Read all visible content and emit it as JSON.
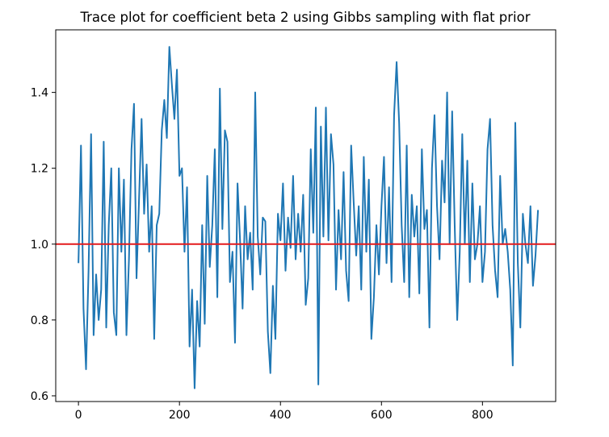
{
  "chart_data": {
    "type": "line",
    "title": "Trace plot for coefficient beta 2 using Gibbs sampling with flat prior",
    "xlabel": "",
    "ylabel": "",
    "xlim": [
      -45,
      945
    ],
    "ylim": [
      0.585,
      1.565
    ],
    "x_ticks": [
      0,
      200,
      400,
      600,
      800
    ],
    "x_tick_labels": [
      "0",
      "200",
      "400",
      "600",
      "800"
    ],
    "y_ticks": [
      0.6,
      0.8,
      1.0,
      1.2,
      1.4
    ],
    "y_tick_labels": [
      "0.6",
      "0.8",
      "1.0",
      "1.2",
      "1.4"
    ],
    "grid": false,
    "legend": "none",
    "reference_line": {
      "y": 1.0,
      "color": "#e41a1c"
    },
    "series": [
      {
        "color": "#1f77b4",
        "x_start": 0,
        "x_step": 5,
        "values": [
          0.95,
          1.26,
          0.83,
          0.67,
          0.93,
          1.29,
          0.76,
          0.92,
          0.8,
          0.88,
          1.27,
          0.78,
          1.05,
          1.2,
          0.82,
          0.76,
          1.2,
          0.98,
          1.17,
          0.76,
          0.96,
          1.25,
          1.37,
          0.91,
          1.12,
          1.33,
          1.08,
          1.21,
          0.98,
          1.1,
          0.75,
          1.05,
          1.08,
          1.3,
          1.38,
          1.28,
          1.52,
          1.42,
          1.33,
          1.46,
          1.18,
          1.2,
          0.98,
          1.15,
          0.73,
          0.88,
          0.62,
          0.85,
          0.73,
          1.05,
          0.79,
          1.18,
          0.94,
          1.05,
          1.25,
          0.86,
          1.41,
          1.04,
          1.3,
          1.27,
          0.9,
          0.98,
          0.74,
          1.16,
          1.01,
          0.83,
          1.1,
          0.96,
          1.03,
          0.88,
          1.4,
          1.02,
          0.92,
          1.07,
          1.06,
          0.77,
          0.66,
          0.89,
          0.75,
          1.08,
          1.01,
          1.16,
          0.93,
          1.07,
          0.99,
          1.18,
          0.96,
          1.08,
          0.98,
          1.13,
          0.84,
          0.91,
          1.25,
          1.03,
          1.36,
          0.63,
          1.31,
          1.02,
          1.36,
          1.01,
          1.29,
          1.21,
          0.88,
          1.09,
          0.96,
          1.19,
          0.93,
          0.85,
          1.26,
          1.11,
          0.97,
          1.1,
          0.88,
          1.23,
          0.98,
          1.17,
          0.75,
          0.86,
          1.05,
          0.92,
          1.1,
          1.23,
          0.95,
          1.15,
          0.9,
          1.34,
          1.48,
          1.32,
          1.05,
          0.9,
          1.26,
          0.86,
          1.13,
          1.02,
          1.1,
          0.87,
          1.25,
          1.04,
          1.09,
          0.78,
          1.2,
          1.34,
          1.1,
          0.96,
          1.22,
          1.11,
          1.4,
          1.0,
          1.35,
          1.05,
          0.8,
          0.98,
          1.29,
          1.0,
          1.22,
          0.9,
          1.16,
          0.96,
          1.0,
          1.1,
          0.9,
          0.98,
          1.25,
          1.33,
          1.05,
          0.93,
          0.86,
          1.18,
          1.0,
          1.04,
          0.98,
          0.88,
          0.68,
          1.32,
          0.95,
          0.78,
          1.08,
          1.0,
          0.95,
          1.1,
          0.89,
          0.97,
          1.09
        ]
      }
    ]
  }
}
